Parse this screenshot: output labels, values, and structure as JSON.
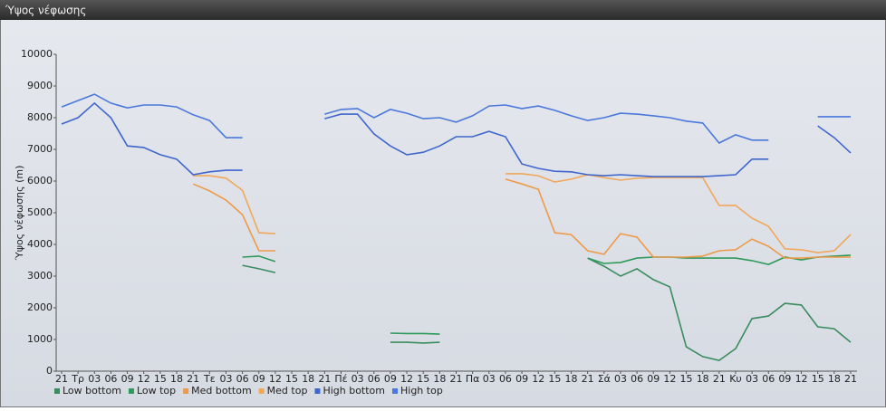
{
  "chart_data": {
    "type": "line",
    "title": "Ύψος νέφωσης",
    "y_label": "Ύψος νέφωσης (m)",
    "categories": [
      "21",
      "Τρ",
      "03",
      "06",
      "09",
      "12",
      "15",
      "18",
      "21",
      "Τε",
      "03",
      "06",
      "09",
      "12",
      "15",
      "18",
      "21",
      "Πέ",
      "03",
      "06",
      "09",
      "12",
      "15",
      "18",
      "21",
      "Πα",
      "03",
      "06",
      "09",
      "12",
      "15",
      "18",
      "21",
      "Σά",
      "03",
      "06",
      "09",
      "12",
      "15",
      "18",
      "21",
      "Κυ",
      "03",
      "06",
      "09",
      "12",
      "15",
      "18",
      "21"
    ],
    "ylim": [
      0,
      10000
    ],
    "yticks": [
      0,
      1000,
      2000,
      3000,
      4000,
      5000,
      6000,
      7000,
      8000,
      9000,
      10000
    ],
    "grid": false,
    "legend": "bottom-left",
    "series": [
      {
        "name": "Low bottom",
        "color": "#3a8c5e",
        "values": [
          null,
          null,
          null,
          null,
          null,
          null,
          null,
          null,
          null,
          null,
          null,
          3340,
          3230,
          3110,
          null,
          null,
          null,
          null,
          null,
          null,
          910,
          910,
          890,
          910,
          null,
          null,
          null,
          null,
          null,
          null,
          null,
          null,
          3570,
          3310,
          3000,
          3230,
          2890,
          2660,
          770,
          460,
          340,
          710,
          1660,
          1740,
          2140,
          2090,
          1400,
          1340,
          910
        ]
      },
      {
        "name": "Low top",
        "color": "#2e9a5a",
        "values": [
          null,
          null,
          null,
          null,
          null,
          null,
          null,
          null,
          null,
          null,
          null,
          3600,
          3630,
          3460,
          null,
          null,
          null,
          null,
          null,
          null,
          1200,
          1190,
          1190,
          1170,
          null,
          null,
          null,
          null,
          null,
          null,
          null,
          null,
          3570,
          3400,
          3430,
          3570,
          3600,
          3600,
          3570,
          3570,
          3570,
          3570,
          3490,
          3370,
          3600,
          3510,
          3600,
          3630,
          3660
        ]
      },
      {
        "name": "Med bottom",
        "color": "#ee9a48",
        "values": [
          null,
          null,
          null,
          null,
          null,
          null,
          null,
          null,
          5910,
          5690,
          5400,
          4940,
          3800,
          3800,
          null,
          null,
          null,
          null,
          null,
          null,
          null,
          null,
          null,
          null,
          null,
          null,
          null,
          6060,
          5910,
          5740,
          4370,
          4310,
          3800,
          3690,
          4340,
          4230,
          3600,
          3600,
          3600,
          3630,
          3800,
          3830,
          4170,
          3940,
          3570,
          3570,
          3600,
          3600,
          3600
        ]
      },
      {
        "name": "Med top",
        "color": "#f0a85a",
        "values": [
          null,
          null,
          null,
          null,
          null,
          null,
          null,
          null,
          6170,
          6170,
          6090,
          5710,
          4370,
          4340,
          null,
          null,
          null,
          null,
          null,
          null,
          null,
          null,
          null,
          null,
          null,
          null,
          null,
          6230,
          6230,
          6170,
          5970,
          6060,
          6200,
          6110,
          6030,
          6090,
          6110,
          6110,
          6110,
          6110,
          5230,
          5230,
          4830,
          4570,
          3860,
          3830,
          3740,
          3800,
          4310
        ]
      },
      {
        "name": "High bottom",
        "color": "#3f66cc",
        "values": [
          7800,
          8000,
          8460,
          8000,
          7110,
          7060,
          6830,
          6690,
          6200,
          6290,
          6340,
          6340,
          null,
          null,
          null,
          null,
          7970,
          8110,
          8110,
          7490,
          7110,
          6830,
          6910,
          7110,
          7400,
          7400,
          7570,
          7400,
          6540,
          6400,
          6310,
          6290,
          6200,
          6170,
          6200,
          6170,
          6140,
          6140,
          6140,
          6140,
          6170,
          6200,
          6690,
          6690,
          null,
          null,
          7740,
          7370,
          6890
        ]
      },
      {
        "name": "High top",
        "color": "#4a78dc",
        "values": [
          8340,
          8540,
          8740,
          8460,
          8310,
          8400,
          8400,
          8340,
          8090,
          7910,
          7370,
          7370,
          null,
          null,
          null,
          null,
          8110,
          8260,
          8290,
          8000,
          8260,
          8140,
          7970,
          8000,
          7860,
          8060,
          8370,
          8400,
          8290,
          8370,
          8230,
          8060,
          7910,
          8000,
          8140,
          8110,
          8060,
          8000,
          7890,
          7830,
          7200,
          7460,
          7290,
          7290,
          null,
          null,
          8030,
          8030,
          8030
        ]
      }
    ]
  }
}
